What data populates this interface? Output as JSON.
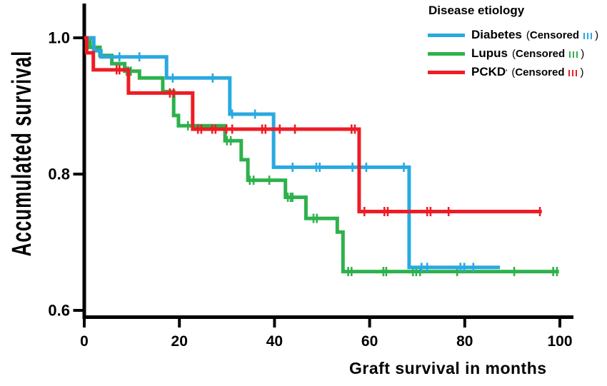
{
  "chart_data": {
    "type": "line",
    "subtype": "kaplan-meier-step",
    "title": "",
    "xlabel": "Graft survival in months",
    "ylabel": "Accumulated survival",
    "xlim": [
      0,
      103
    ],
    "ylim": [
      0.57,
      1.02
    ],
    "x_ticks": [
      0,
      20,
      40,
      60,
      80,
      100
    ],
    "x_tick_labels": [
      "0",
      "20",
      "40",
      "60",
      "80",
      "100"
    ],
    "y_ticks": [
      1.0,
      0.8,
      0.6
    ],
    "y_tick_labels": [
      "1.0",
      "0.8",
      "0.6"
    ],
    "grid": false,
    "axis_color": "#000000",
    "legend": {
      "title": "Disease etiology",
      "position": "top-right",
      "censored_open": "(",
      "censored_word": "Censored",
      "censored_close": ")"
    },
    "draw_order": [
      1,
      0,
      2
    ],
    "series": [
      {
        "name": "Diabetes",
        "name_mark": "",
        "color": "#29A9E1",
        "steps": [
          [
            0,
            1.0
          ],
          [
            2,
            0.981
          ],
          [
            3.5,
            0.972
          ],
          [
            17.3,
            0.941
          ],
          [
            30.6,
            0.888
          ],
          [
            39.8,
            0.81
          ],
          [
            68.3,
            0.663
          ]
        ],
        "end_month": 87.4,
        "censors": [
          [
            7.4,
            0.972
          ],
          [
            11.6,
            0.972
          ],
          [
            18.6,
            0.941
          ],
          [
            27,
            0.941
          ],
          [
            31.1,
            0.888
          ],
          [
            35.9,
            0.888
          ],
          [
            43.8,
            0.81
          ],
          [
            48.8,
            0.81
          ],
          [
            49.5,
            0.81
          ],
          [
            56.4,
            0.81
          ],
          [
            59.3,
            0.81
          ],
          [
            67.2,
            0.81
          ],
          [
            70.9,
            0.663
          ],
          [
            72.1,
            0.663
          ],
          [
            79.1,
            0.663
          ],
          [
            79.9,
            0.663
          ],
          [
            81.8,
            0.663
          ]
        ]
      },
      {
        "name": "Lupus",
        "name_mark": "",
        "color": "#2EB14C",
        "steps": [
          [
            0,
            1.0
          ],
          [
            1.2,
            0.986
          ],
          [
            3.3,
            0.974
          ],
          [
            5.8,
            0.962
          ],
          [
            8.5,
            0.951
          ],
          [
            11.6,
            0.941
          ],
          [
            16.5,
            0.921
          ],
          [
            18.8,
            0.886
          ],
          [
            19.8,
            0.871
          ],
          [
            29.6,
            0.849
          ],
          [
            33,
            0.821
          ],
          [
            34.4,
            0.791
          ],
          [
            42.3,
            0.766
          ],
          [
            46.6,
            0.735
          ],
          [
            53.2,
            0.715
          ],
          [
            54.4,
            0.657
          ]
        ],
        "end_month": 99.8,
        "censors": [
          [
            8.9,
            0.951
          ],
          [
            9.3,
            0.951
          ],
          [
            9.8,
            0.951
          ],
          [
            21.8,
            0.871
          ],
          [
            30,
            0.849
          ],
          [
            30.8,
            0.849
          ],
          [
            34.8,
            0.791
          ],
          [
            35.6,
            0.791
          ],
          [
            38.9,
            0.791
          ],
          [
            42.8,
            0.766
          ],
          [
            43.4,
            0.766
          ],
          [
            43.8,
            0.766
          ],
          [
            48.2,
            0.735
          ],
          [
            48.9,
            0.735
          ],
          [
            55.5,
            0.657
          ],
          [
            56.2,
            0.657
          ],
          [
            62.9,
            0.657
          ],
          [
            63.5,
            0.657
          ],
          [
            69.1,
            0.657
          ],
          [
            69.8,
            0.657
          ],
          [
            70.6,
            0.657
          ],
          [
            78.4,
            0.657
          ],
          [
            90.4,
            0.657
          ],
          [
            98.6,
            0.657
          ],
          [
            99.4,
            0.657
          ]
        ]
      },
      {
        "name": "PCKD",
        "name_mark": "'",
        "color": "#EE1C25",
        "steps": [
          [
            0,
            1.0
          ],
          [
            0.5,
            0.978
          ],
          [
            1.9,
            0.953
          ],
          [
            9.3,
            0.919
          ],
          [
            22.8,
            0.866
          ],
          [
            57.8,
            0.745
          ]
        ],
        "end_month": 96.2,
        "censors": [
          [
            6.8,
            0.953
          ],
          [
            7.4,
            0.953
          ],
          [
            18,
            0.919
          ],
          [
            18.8,
            0.919
          ],
          [
            23.9,
            0.866
          ],
          [
            24.6,
            0.866
          ],
          [
            26.9,
            0.866
          ],
          [
            27.6,
            0.866
          ],
          [
            29.9,
            0.866
          ],
          [
            31.1,
            0.866
          ],
          [
            37.4,
            0.866
          ],
          [
            38.1,
            0.866
          ],
          [
            41.1,
            0.866
          ],
          [
            44.3,
            0.866
          ],
          [
            56.2,
            0.866
          ],
          [
            56.9,
            0.866
          ],
          [
            58.9,
            0.745
          ],
          [
            63.1,
            0.745
          ],
          [
            63.8,
            0.745
          ],
          [
            72.1,
            0.745
          ],
          [
            72.8,
            0.745
          ],
          [
            76.6,
            0.745
          ],
          [
            95.8,
            0.745
          ]
        ]
      }
    ]
  }
}
